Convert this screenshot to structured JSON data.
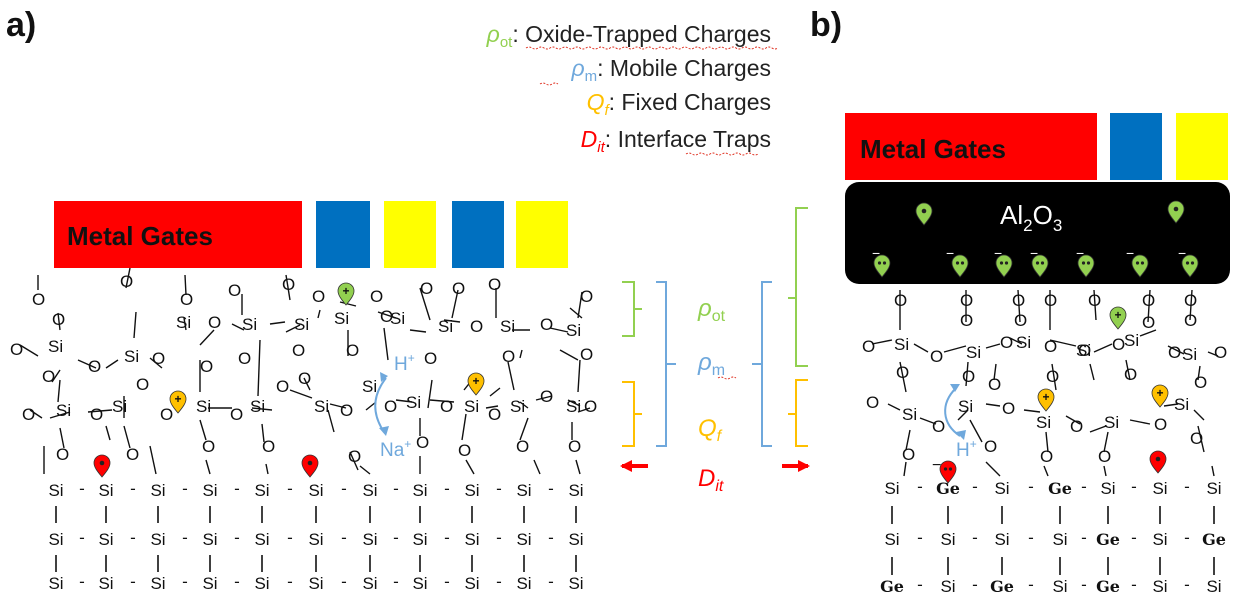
{
  "panel_a_label": "a)",
  "panel_b_label": "b)",
  "legend": {
    "rho_ot_symbol": "ρ",
    "rho_ot_sub": "ot",
    "rho_ot_desc": ": Oxide-Trapped Charges",
    "rho_m_symbol": "ρ",
    "rho_m_sub": "m",
    "rho_m_desc": ": Mobile Charges",
    "qf_symbol": "Q",
    "qf_sub": "f",
    "qf_desc": ": Fixed Charges",
    "dit_symbol": "D",
    "dit_sub": "it",
    "dit_desc": ": Interface Traps"
  },
  "gate_label_a": "Metal Gates",
  "gate_label_b": "Metal Gates",
  "oxide_label_b": {
    "main": "Al",
    "sub2": "2",
    "o": "O",
    "sub3": "3"
  },
  "labels": {
    "h_plus": "H",
    "plus": "+",
    "na_plus": "Na",
    "minus": "−",
    "si": "Si",
    "o": "O",
    "ge": "Ge",
    "dash": "-"
  },
  "brackets": {
    "rho_ot": {
      "symbol": "ρ",
      "sub": "ot"
    },
    "rho_m": {
      "symbol": "ρ",
      "sub": "m"
    },
    "qf": {
      "symbol": "Q",
      "sub": "f"
    },
    "dit": {
      "symbol": "D",
      "sub": "it"
    }
  },
  "colors": {
    "metal_gate": "#ff0000",
    "blue_gate": "#0070c0",
    "yellow_gate": "#ffff00",
    "green": "#92d050",
    "blue_label": "#6fa8dc",
    "orange": "#ffc000",
    "red": "#ff0000",
    "oxide_black": "#000000"
  }
}
